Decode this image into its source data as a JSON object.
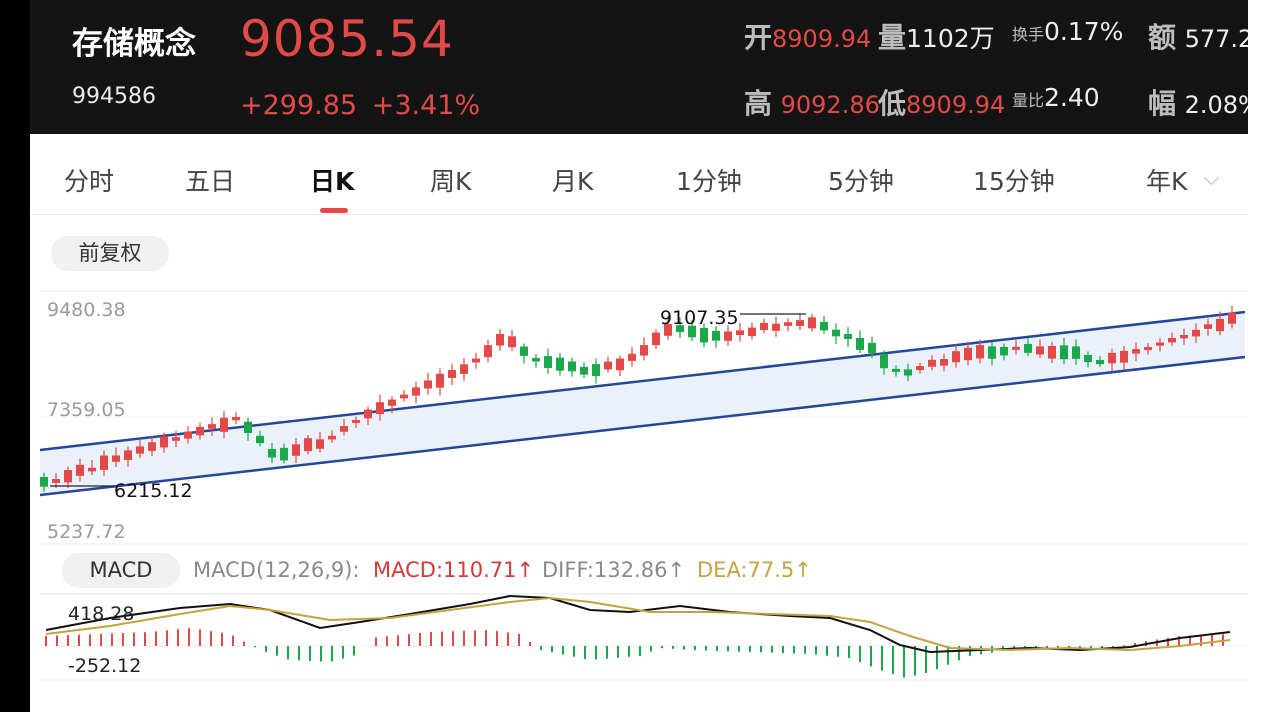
{
  "header": {
    "name": "存储概念",
    "code": "994586",
    "price": "9085.54",
    "change": "+299.85",
    "change_pct": "+3.41%",
    "open_label": "开",
    "open": "8909.94",
    "volume_label": "量",
    "volume": "1102万",
    "turnover_label": "换手",
    "turnover": "0.17%",
    "amount_label": "额",
    "amount": "577.2",
    "high_label": "高",
    "high": "9092.86",
    "low_label": "低",
    "low": "8909.94",
    "vol_ratio_label": "量比",
    "vol_ratio": "2.40",
    "amp_label": "幅",
    "amp": "2.08%"
  },
  "tabs": [
    "分时",
    "五日",
    "日K",
    "周K",
    "月K",
    "1分钟",
    "5分钟",
    "15分钟",
    "年K"
  ],
  "active_tab": "日K",
  "adjust_button": "前复权",
  "kline": {
    "y_axis": [
      "9480.38",
      "7359.05",
      "5237.72"
    ],
    "high_marker": "9107.35",
    "low_marker": "6215.12"
  },
  "macd": {
    "button": "MACD",
    "params": "MACD(12,26,9):",
    "macd": "MACD:110.71↑",
    "diff": "DIFF:132.86↑",
    "dea": "DEA:77.5↑",
    "y_top": "418.28",
    "y_bottom": "-252.12"
  },
  "colors": {
    "up": "#e34a47",
    "down": "#1aa84a",
    "channel": "#24479a",
    "dea": "#c6a23f",
    "header_bg": "#141414"
  }
}
